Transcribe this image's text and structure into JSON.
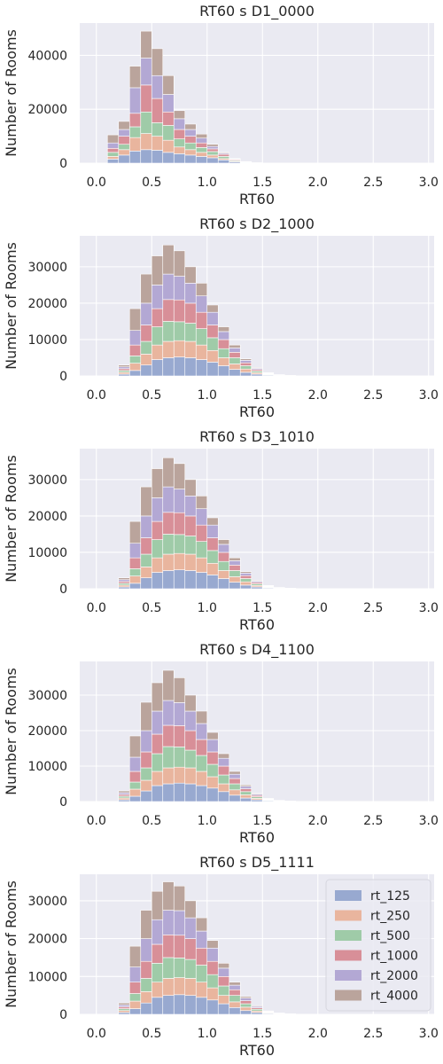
{
  "colors": {
    "panel_bg": "#EAEAF2",
    "grid": "#FFFFFF",
    "rt_125": "#98A9D0",
    "rt_250": "#E9B59E",
    "rt_500": "#9FCBA8",
    "rt_1000": "#D88F98",
    "rt_2000": "#B3A8D4",
    "rt_4000": "#BAA49C"
  },
  "chart_data": [
    {
      "type": "bar",
      "stacked": true,
      "title": "RT60 s D1_0000",
      "xlabel": "RT60",
      "ylabel": "Number of Rooms",
      "xlim": [
        -0.15,
        3.05
      ],
      "ylim": [
        0,
        52000
      ],
      "xticks": [
        0.0,
        0.5,
        1.0,
        1.5,
        2.0,
        2.5,
        3.0
      ],
      "xtick_labels": [
        "0.0",
        "0.5",
        "1.0",
        "1.5",
        "2.0",
        "2.5",
        "3.0"
      ],
      "yticks": [
        0,
        20000,
        40000
      ],
      "ytick_labels": [
        "0",
        "20000",
        "40000"
      ],
      "bin_edges": [
        0.1,
        0.2,
        0.3,
        0.4,
        0.5,
        0.6,
        0.7,
        0.8,
        0.9,
        1.0,
        1.1,
        1.2,
        1.3,
        1.4,
        1.5
      ],
      "grid": true,
      "legend": null,
      "series": [
        {
          "name": "rt_125",
          "values": [
            1500,
            3000,
            4500,
            5000,
            4800,
            4000,
            3500,
            3000,
            2500,
            2000,
            1200,
            500,
            200,
            50
          ]
        },
        {
          "name": "rt_250",
          "values": [
            1000,
            2000,
            5000,
            6000,
            5200,
            4500,
            2500,
            2000,
            1500,
            1000,
            500,
            300,
            100,
            20
          ]
        },
        {
          "name": "rt_500",
          "values": [
            1500,
            2000,
            4000,
            8000,
            5000,
            5500,
            3000,
            2500,
            1800,
            1300,
            800,
            300,
            100,
            20
          ]
        },
        {
          "name": "rt_1000",
          "values": [
            1500,
            3000,
            5000,
            10000,
            9000,
            5000,
            3500,
            2500,
            1700,
            1000,
            800,
            300,
            100,
            20
          ]
        },
        {
          "name": "rt_2000",
          "values": [
            2000,
            2500,
            9500,
            10000,
            8500,
            6500,
            4000,
            2500,
            1800,
            900,
            400,
            200,
            50,
            10
          ]
        },
        {
          "name": "rt_4000",
          "values": [
            3000,
            3000,
            8000,
            10000,
            10000,
            7000,
            3000,
            2000,
            1500,
            800,
            300,
            100,
            50,
            10
          ]
        }
      ]
    },
    {
      "type": "bar",
      "stacked": true,
      "title": "RT60 s D2_1000",
      "xlabel": "RT60",
      "ylabel": "Number of Rooms",
      "xlim": [
        -0.15,
        3.05
      ],
      "ylim": [
        0,
        38500
      ],
      "xticks": [
        0.0,
        0.5,
        1.0,
        1.5,
        2.0,
        2.5,
        3.0
      ],
      "xtick_labels": [
        "0.0",
        "0.5",
        "1.0",
        "1.5",
        "2.0",
        "2.5",
        "3.0"
      ],
      "yticks": [
        0,
        10000,
        20000,
        30000
      ],
      "ytick_labels": [
        "0",
        "10000",
        "20000",
        "30000"
      ],
      "bin_edges": [
        0.2,
        0.3,
        0.4,
        0.5,
        0.6,
        0.7,
        0.8,
        0.9,
        1.0,
        1.1,
        1.2,
        1.3,
        1.4,
        1.5,
        1.6,
        1.7,
        1.8
      ],
      "grid": true,
      "legend": null,
      "series": [
        {
          "name": "rt_125",
          "values": [
            500,
            1500,
            3000,
            4500,
            5000,
            5200,
            5000,
            4500,
            3800,
            2800,
            1800,
            1000,
            500,
            200,
            100,
            50
          ]
        },
        {
          "name": "rt_250",
          "values": [
            500,
            2000,
            3000,
            4000,
            4500,
            4500,
            4500,
            4000,
            3200,
            2200,
            1500,
            900,
            400,
            150,
            50,
            20
          ]
        },
        {
          "name": "rt_500",
          "values": [
            500,
            2000,
            3500,
            5000,
            5500,
            5200,
            5000,
            4500,
            3500,
            2500,
            1700,
            900,
            450,
            150,
            50,
            20
          ]
        },
        {
          "name": "rt_1000",
          "values": [
            500,
            3000,
            4500,
            5000,
            6000,
            6000,
            5500,
            4500,
            3500,
            2500,
            1500,
            800,
            400,
            150,
            50,
            20
          ]
        },
        {
          "name": "rt_2000",
          "values": [
            500,
            4000,
            6000,
            6500,
            7000,
            6500,
            5500,
            4500,
            3500,
            2200,
            1200,
            700,
            350,
            150,
            50,
            10
          ]
        },
        {
          "name": "rt_4000",
          "values": [
            500,
            6000,
            8000,
            8000,
            8000,
            7000,
            4500,
            3500,
            2000,
            1300,
            800,
            400,
            200,
            100,
            50,
            10
          ]
        }
      ]
    },
    {
      "type": "bar",
      "stacked": true,
      "title": "RT60 s D3_1010",
      "xlabel": "RT60",
      "ylabel": "Number of Rooms",
      "xlim": [
        -0.15,
        3.05
      ],
      "ylim": [
        0,
        38500
      ],
      "xticks": [
        0.0,
        0.5,
        1.0,
        1.5,
        2.0,
        2.5,
        3.0
      ],
      "xtick_labels": [
        "0.0",
        "0.5",
        "1.0",
        "1.5",
        "2.0",
        "2.5",
        "3.0"
      ],
      "yticks": [
        0,
        10000,
        20000,
        30000
      ],
      "ytick_labels": [
        "0",
        "10000",
        "20000",
        "30000"
      ],
      "bin_edges": [
        0.2,
        0.3,
        0.4,
        0.5,
        0.6,
        0.7,
        0.8,
        0.9,
        1.0,
        1.1,
        1.2,
        1.3,
        1.4,
        1.5,
        1.6,
        1.7,
        1.8
      ],
      "grid": true,
      "legend": null,
      "series": [
        {
          "name": "rt_125",
          "values": [
            500,
            1500,
            3000,
            4500,
            5000,
            5200,
            5000,
            4500,
            3800,
            2800,
            1800,
            1000,
            500,
            200,
            100,
            50
          ]
        },
        {
          "name": "rt_250",
          "values": [
            500,
            2000,
            3000,
            4000,
            4500,
            4500,
            4500,
            4000,
            3200,
            2200,
            1500,
            900,
            400,
            150,
            50,
            20
          ]
        },
        {
          "name": "rt_500",
          "values": [
            500,
            2000,
            3500,
            5000,
            5500,
            5200,
            5000,
            4500,
            3500,
            2500,
            1700,
            900,
            450,
            150,
            50,
            20
          ]
        },
        {
          "name": "rt_1000",
          "values": [
            500,
            3000,
            4500,
            5000,
            6000,
            6000,
            5500,
            4500,
            3500,
            2500,
            1500,
            800,
            400,
            150,
            50,
            20
          ]
        },
        {
          "name": "rt_2000",
          "values": [
            500,
            4000,
            6000,
            6500,
            7000,
            6500,
            5500,
            4500,
            3500,
            2200,
            1200,
            700,
            350,
            150,
            50,
            10
          ]
        },
        {
          "name": "rt_4000",
          "values": [
            500,
            6000,
            8000,
            8000,
            8000,
            7000,
            4500,
            3500,
            2000,
            1300,
            800,
            400,
            200,
            100,
            50,
            10
          ]
        }
      ]
    },
    {
      "type": "bar",
      "stacked": true,
      "title": "RT60 s D4_1100",
      "xlabel": "RT60",
      "ylabel": "Number of Rooms",
      "xlim": [
        -0.15,
        3.05
      ],
      "ylim": [
        0,
        39500
      ],
      "xticks": [
        0.0,
        0.5,
        1.0,
        1.5,
        2.0,
        2.5,
        3.0
      ],
      "xtick_labels": [
        "0.0",
        "0.5",
        "1.0",
        "1.5",
        "2.0",
        "2.5",
        "3.0"
      ],
      "yticks": [
        0,
        10000,
        20000,
        30000
      ],
      "ytick_labels": [
        "0",
        "10000",
        "20000",
        "30000"
      ],
      "bin_edges": [
        0.2,
        0.3,
        0.4,
        0.5,
        0.6,
        0.7,
        0.8,
        0.9,
        1.0,
        1.1,
        1.2,
        1.3,
        1.4,
        1.5,
        1.6,
        1.7,
        1.8
      ],
      "grid": true,
      "legend": null,
      "series": [
        {
          "name": "rt_125",
          "values": [
            500,
            1500,
            3000,
            4500,
            5000,
            5200,
            5000,
            4500,
            3800,
            2800,
            1800,
            1000,
            500,
            200,
            100,
            50
          ]
        },
        {
          "name": "rt_250",
          "values": [
            500,
            2000,
            3000,
            4000,
            4500,
            4500,
            4500,
            4000,
            3200,
            2200,
            1500,
            900,
            400,
            150,
            50,
            20
          ]
        },
        {
          "name": "rt_500",
          "values": [
            500,
            2000,
            3500,
            5000,
            6000,
            5700,
            5000,
            4500,
            3500,
            2500,
            1700,
            900,
            450,
            150,
            50,
            20
          ]
        },
        {
          "name": "rt_1000",
          "values": [
            500,
            3000,
            4500,
            5500,
            6000,
            6000,
            5500,
            4500,
            3500,
            2500,
            1500,
            800,
            400,
            150,
            50,
            20
          ]
        },
        {
          "name": "rt_2000",
          "values": [
            500,
            4000,
            6000,
            6500,
            7000,
            6500,
            5500,
            4500,
            3500,
            2200,
            1200,
            700,
            350,
            150,
            50,
            10
          ]
        },
        {
          "name": "rt_4000",
          "values": [
            500,
            6000,
            8000,
            8000,
            8500,
            7000,
            4500,
            3500,
            2000,
            1300,
            800,
            400,
            200,
            100,
            50,
            10
          ]
        }
      ]
    },
    {
      "type": "bar",
      "stacked": true,
      "title": "RT60 s D5_1111",
      "xlabel": "RT60",
      "ylabel": "Number of Rooms",
      "xlim": [
        -0.15,
        3.05
      ],
      "ylim": [
        0,
        37000
      ],
      "xticks": [
        0.0,
        0.5,
        1.0,
        1.5,
        2.0,
        2.5,
        3.0
      ],
      "xtick_labels": [
        "0.0",
        "0.5",
        "1.0",
        "1.5",
        "2.0",
        "2.5",
        "3.0"
      ],
      "yticks": [
        0,
        10000,
        20000,
        30000
      ],
      "ytick_labels": [
        "0",
        "10000",
        "20000",
        "30000"
      ],
      "bin_edges": [
        0.2,
        0.3,
        0.4,
        0.5,
        0.6,
        0.7,
        0.8,
        0.9,
        1.0,
        1.1,
        1.2,
        1.3,
        1.4,
        1.5,
        1.6,
        1.7,
        1.8
      ],
      "grid": true,
      "legend": "top-right",
      "series": [
        {
          "name": "rt_125",
          "values": [
            500,
            1500,
            3000,
            4500,
            5000,
            5200,
            5000,
            4500,
            3800,
            2800,
            1800,
            1000,
            500,
            200,
            100,
            50
          ]
        },
        {
          "name": "rt_250",
          "values": [
            500,
            2000,
            3000,
            4000,
            4500,
            4500,
            4500,
            4000,
            3200,
            2200,
            1500,
            900,
            400,
            150,
            50,
            20
          ]
        },
        {
          "name": "rt_500",
          "values": [
            500,
            2000,
            3500,
            5000,
            5500,
            5200,
            5000,
            4500,
            3500,
            2500,
            1700,
            900,
            450,
            150,
            50,
            20
          ]
        },
        {
          "name": "rt_1000",
          "values": [
            500,
            3000,
            4500,
            5000,
            6000,
            6000,
            5500,
            4500,
            3500,
            2500,
            1500,
            800,
            400,
            150,
            50,
            20
          ]
        },
        {
          "name": "rt_2000",
          "values": [
            500,
            4000,
            6000,
            6500,
            6500,
            6500,
            5500,
            4500,
            3500,
            2200,
            1200,
            700,
            350,
            150,
            50,
            10
          ]
        },
        {
          "name": "rt_4000",
          "values": [
            500,
            5500,
            7500,
            7500,
            7500,
            6500,
            4500,
            3500,
            2000,
            1300,
            800,
            400,
            200,
            100,
            50,
            10
          ]
        }
      ]
    }
  ]
}
